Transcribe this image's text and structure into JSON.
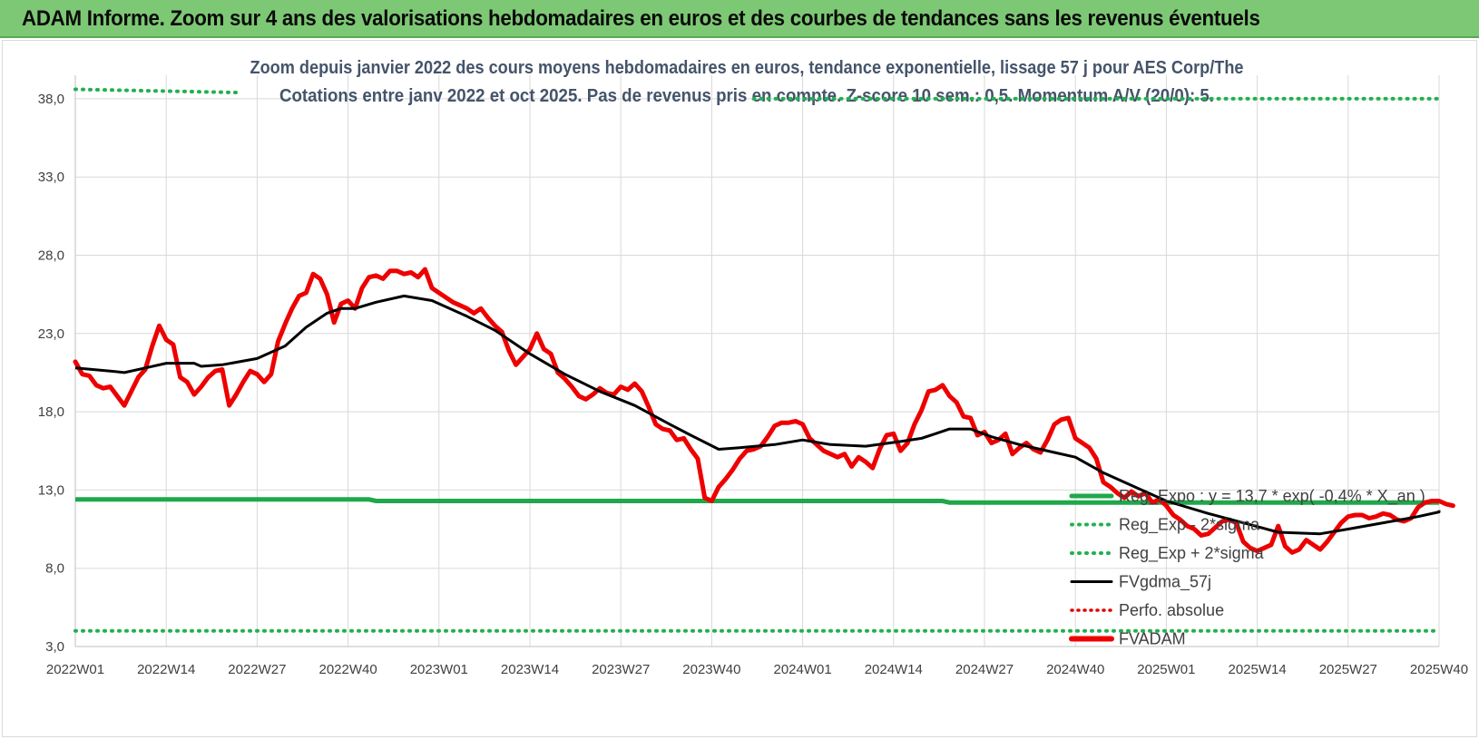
{
  "header": {
    "title": "ADAM Informe. Zoom sur 4 ans des valorisations hebdomadaires en euros et des courbes de tendances sans les revenus éventuels"
  },
  "colors": {
    "header_bg": "#7dc874",
    "reg_expo": "#1fa84a",
    "reg_dotted": "#22b04f",
    "fvgdma": "#000000",
    "perfo": "#e00000",
    "fvadam": "#ee0000",
    "grid": "#d9d9d9"
  },
  "chart_data": {
    "type": "line",
    "title_line1": "Zoom depuis janvier 2022 des cours moyens hebdomadaires en euros, tendance exponentielle, lissage 57 j pour AES Corp/The",
    "title_line2": "Cotations entre janv 2022 et oct 2025. Pas de revenus pris en compte. Z-score 10 sem.: 0,5. Momentum A/V (20/0): 5.",
    "ylim": [
      3,
      39.5
    ],
    "y_ticks": [
      "3,0",
      "8,0",
      "13,0",
      "18,0",
      "23,0",
      "28,0",
      "33,0",
      "38,0"
    ],
    "y_tick_values": [
      3,
      8,
      13,
      18,
      23,
      28,
      33,
      38
    ],
    "x_count": 196,
    "x_ticks": [
      "2022W01",
      "2022W14",
      "2022W27",
      "2022W40",
      "2023W01",
      "2023W14",
      "2023W27",
      "2023W40",
      "2024W01",
      "2024W14",
      "2024W27",
      "2024W40",
      "2025W01",
      "2025W14",
      "2025W27",
      "2025W40"
    ],
    "x_tick_indices": [
      0,
      13,
      26,
      39,
      52,
      65,
      78,
      91,
      104,
      117,
      130,
      143,
      156,
      169,
      182,
      195
    ],
    "legend": [
      {
        "label": "Reg_Expo : y = 13,7 * exp( -0,4% *  X_an )",
        "style": "solid-green"
      },
      {
        "label": "Reg_Exp - 2*sigma",
        "style": "dotted-green"
      },
      {
        "label": "Reg_Exp + 2*sigma",
        "style": "dotted-green"
      },
      {
        "label": "FVgdma_57j",
        "style": "solid-black"
      },
      {
        "label": "Perfo. absolue",
        "style": "dotted-red"
      },
      {
        "label": "FVADAM",
        "style": "solid-red"
      }
    ],
    "series": [
      {
        "name": "Reg_Expo",
        "points": [
          [
            0,
            12.4
          ],
          [
            42,
            12.4
          ],
          [
            43,
            12.3
          ],
          [
            124,
            12.3
          ],
          [
            125,
            12.2
          ],
          [
            200,
            12.2
          ]
        ]
      },
      {
        "name": "Reg_Exp - 2*sigma",
        "points": [
          [
            0,
            4.0
          ],
          [
            200,
            4.0
          ]
        ]
      },
      {
        "name": "Reg_Exp + 2*sigma",
        "segments": [
          [
            [
              0,
              38.6
            ],
            [
              23,
              38.4
            ]
          ],
          [
            [
              97,
              38.0
            ],
            [
              200,
              38.0
            ]
          ]
        ]
      },
      {
        "name": "FVgdma_57j",
        "points": [
          [
            0,
            20.8
          ],
          [
            5,
            20.6
          ],
          [
            7,
            20.5
          ],
          [
            10,
            20.8
          ],
          [
            13,
            21.1
          ],
          [
            17,
            21.1
          ],
          [
            18,
            20.9
          ],
          [
            21,
            21.0
          ],
          [
            26,
            21.4
          ],
          [
            30,
            22.2
          ],
          [
            33,
            23.4
          ],
          [
            36,
            24.3
          ],
          [
            38,
            24.6
          ],
          [
            40,
            24.6
          ],
          [
            43,
            25.0
          ],
          [
            47,
            25.4
          ],
          [
            51,
            25.1
          ],
          [
            56,
            24.1
          ],
          [
            60,
            23.2
          ],
          [
            65,
            21.7
          ],
          [
            70,
            20.4
          ],
          [
            75,
            19.3
          ],
          [
            80,
            18.4
          ],
          [
            85,
            17.2
          ],
          [
            88,
            16.5
          ],
          [
            92,
            15.6
          ],
          [
            95,
            15.7
          ],
          [
            100,
            15.9
          ],
          [
            104,
            16.2
          ],
          [
            108,
            15.9
          ],
          [
            113,
            15.8
          ],
          [
            118,
            16.1
          ],
          [
            121,
            16.3
          ],
          [
            123,
            16.6
          ],
          [
            125,
            16.9
          ],
          [
            128,
            16.9
          ],
          [
            131,
            16.4
          ],
          [
            135,
            15.9
          ],
          [
            140,
            15.4
          ],
          [
            143,
            15.1
          ],
          [
            147,
            14.1
          ],
          [
            152,
            13.1
          ],
          [
            156,
            12.3
          ],
          [
            162,
            11.5
          ],
          [
            167,
            10.9
          ],
          [
            172,
            10.3
          ],
          [
            178,
            10.2
          ],
          [
            182,
            10.5
          ],
          [
            187,
            10.9
          ],
          [
            192,
            11.3
          ],
          [
            195,
            11.6
          ],
          [
            199,
            11.7
          ]
        ]
      },
      {
        "name": "FVADAM",
        "points": [
          [
            0,
            21.2
          ],
          [
            1,
            20.4
          ],
          [
            2,
            20.3
          ],
          [
            3,
            19.7
          ],
          [
            4,
            19.5
          ],
          [
            5,
            19.6
          ],
          [
            6,
            19.0
          ],
          [
            7,
            18.4
          ],
          [
            8,
            19.3
          ],
          [
            9,
            20.2
          ],
          [
            10,
            20.7
          ],
          [
            11,
            22.2
          ],
          [
            12,
            23.5
          ],
          [
            13,
            22.6
          ],
          [
            14,
            22.3
          ],
          [
            15,
            20.2
          ],
          [
            16,
            19.9
          ],
          [
            17,
            19.1
          ],
          [
            18,
            19.6
          ],
          [
            19,
            20.2
          ],
          [
            20,
            20.6
          ],
          [
            21,
            20.7
          ],
          [
            22,
            18.4
          ],
          [
            23,
            19.1
          ],
          [
            24,
            19.9
          ],
          [
            25,
            20.6
          ],
          [
            26,
            20.4
          ],
          [
            27,
            19.9
          ],
          [
            28,
            20.4
          ],
          [
            29,
            22.5
          ],
          [
            30,
            23.6
          ],
          [
            31,
            24.6
          ],
          [
            32,
            25.4
          ],
          [
            33,
            25.6
          ],
          [
            34,
            26.8
          ],
          [
            35,
            26.5
          ],
          [
            36,
            25.5
          ],
          [
            37,
            23.7
          ],
          [
            38,
            24.9
          ],
          [
            39,
            25.1
          ],
          [
            40,
            24.6
          ],
          [
            41,
            25.9
          ],
          [
            42,
            26.6
          ],
          [
            43,
            26.7
          ],
          [
            44,
            26.5
          ],
          [
            45,
            27.0
          ],
          [
            46,
            27.0
          ],
          [
            47,
            26.8
          ],
          [
            48,
            26.9
          ],
          [
            49,
            26.6
          ],
          [
            50,
            27.1
          ],
          [
            51,
            25.9
          ],
          [
            52,
            25.6
          ],
          [
            53,
            25.3
          ],
          [
            54,
            25.0
          ],
          [
            55,
            24.8
          ],
          [
            56,
            24.6
          ],
          [
            57,
            24.3
          ],
          [
            58,
            24.6
          ],
          [
            59,
            24.0
          ],
          [
            60,
            23.5
          ],
          [
            61,
            23.1
          ],
          [
            62,
            21.9
          ],
          [
            63,
            21.0
          ],
          [
            64,
            21.5
          ],
          [
            65,
            22.0
          ],
          [
            66,
            23.0
          ],
          [
            67,
            22.0
          ],
          [
            68,
            21.7
          ],
          [
            69,
            20.5
          ],
          [
            70,
            20.1
          ],
          [
            71,
            19.6
          ],
          [
            72,
            19.0
          ],
          [
            73,
            18.8
          ],
          [
            74,
            19.1
          ],
          [
            75,
            19.5
          ],
          [
            76,
            19.2
          ],
          [
            77,
            19.1
          ],
          [
            78,
            19.6
          ],
          [
            79,
            19.4
          ],
          [
            80,
            19.8
          ],
          [
            81,
            19.3
          ],
          [
            82,
            18.3
          ],
          [
            83,
            17.2
          ],
          [
            84,
            16.9
          ],
          [
            85,
            16.8
          ],
          [
            86,
            16.2
          ],
          [
            87,
            16.3
          ],
          [
            88,
            15.6
          ],
          [
            89,
            15.0
          ],
          [
            90,
            12.5
          ],
          [
            91,
            12.3
          ],
          [
            92,
            13.2
          ],
          [
            93,
            13.7
          ],
          [
            94,
            14.3
          ],
          [
            95,
            15.0
          ],
          [
            96,
            15.5
          ],
          [
            97,
            15.6
          ],
          [
            98,
            15.8
          ],
          [
            99,
            16.4
          ],
          [
            100,
            17.1
          ],
          [
            101,
            17.3
          ],
          [
            102,
            17.3
          ],
          [
            103,
            17.4
          ],
          [
            104,
            17.2
          ],
          [
            105,
            16.3
          ],
          [
            106,
            15.9
          ],
          [
            107,
            15.5
          ],
          [
            108,
            15.3
          ],
          [
            109,
            15.1
          ],
          [
            110,
            15.3
          ],
          [
            111,
            14.5
          ],
          [
            112,
            15.1
          ],
          [
            113,
            14.8
          ],
          [
            114,
            14.4
          ],
          [
            115,
            15.6
          ],
          [
            116,
            16.5
          ],
          [
            117,
            16.6
          ],
          [
            118,
            15.5
          ],
          [
            119,
            16.0
          ],
          [
            120,
            17.2
          ],
          [
            121,
            18.1
          ],
          [
            122,
            19.3
          ],
          [
            123,
            19.4
          ],
          [
            124,
            19.7
          ],
          [
            125,
            19.0
          ],
          [
            126,
            18.6
          ],
          [
            127,
            17.7
          ],
          [
            128,
            17.6
          ],
          [
            129,
            16.5
          ],
          [
            130,
            16.7
          ],
          [
            131,
            16.0
          ],
          [
            132,
            16.2
          ],
          [
            133,
            16.6
          ],
          [
            134,
            15.3
          ],
          [
            135,
            15.7
          ],
          [
            136,
            16.0
          ],
          [
            137,
            15.6
          ],
          [
            138,
            15.4
          ],
          [
            139,
            16.2
          ],
          [
            140,
            17.2
          ],
          [
            141,
            17.5
          ],
          [
            142,
            17.6
          ],
          [
            143,
            16.3
          ],
          [
            144,
            16.0
          ],
          [
            145,
            15.7
          ],
          [
            146,
            15.0
          ],
          [
            147,
            13.5
          ],
          [
            148,
            13.2
          ],
          [
            149,
            12.8
          ],
          [
            150,
            12.5
          ],
          [
            151,
            12.9
          ],
          [
            152,
            12.6
          ],
          [
            153,
            12.8
          ],
          [
            154,
            12.2
          ],
          [
            155,
            12.4
          ],
          [
            156,
            12.0
          ],
          [
            157,
            11.4
          ],
          [
            158,
            11.1
          ],
          [
            159,
            10.7
          ],
          [
            160,
            10.5
          ],
          [
            161,
            10.1
          ],
          [
            162,
            10.2
          ],
          [
            163,
            10.6
          ],
          [
            164,
            11.0
          ],
          [
            165,
            11.1
          ],
          [
            166,
            10.9
          ],
          [
            167,
            9.7
          ],
          [
            168,
            9.3
          ],
          [
            169,
            9.1
          ],
          [
            170,
            9.3
          ],
          [
            171,
            9.5
          ],
          [
            172,
            10.7
          ],
          [
            173,
            9.4
          ],
          [
            174,
            9.0
          ],
          [
            175,
            9.2
          ],
          [
            176,
            9.8
          ],
          [
            177,
            9.5
          ],
          [
            178,
            9.2
          ],
          [
            179,
            9.7
          ],
          [
            180,
            10.3
          ],
          [
            181,
            10.9
          ],
          [
            182,
            11.3
          ],
          [
            183,
            11.4
          ],
          [
            184,
            11.4
          ],
          [
            185,
            11.2
          ],
          [
            186,
            11.3
          ],
          [
            187,
            11.5
          ],
          [
            188,
            11.4
          ],
          [
            189,
            11.1
          ],
          [
            190,
            11.0
          ],
          [
            191,
            11.2
          ],
          [
            192,
            11.9
          ],
          [
            193,
            12.2
          ],
          [
            194,
            12.3
          ],
          [
            195,
            12.3
          ],
          [
            196,
            12.1
          ],
          [
            197,
            12.0
          ]
        ]
      }
    ]
  }
}
